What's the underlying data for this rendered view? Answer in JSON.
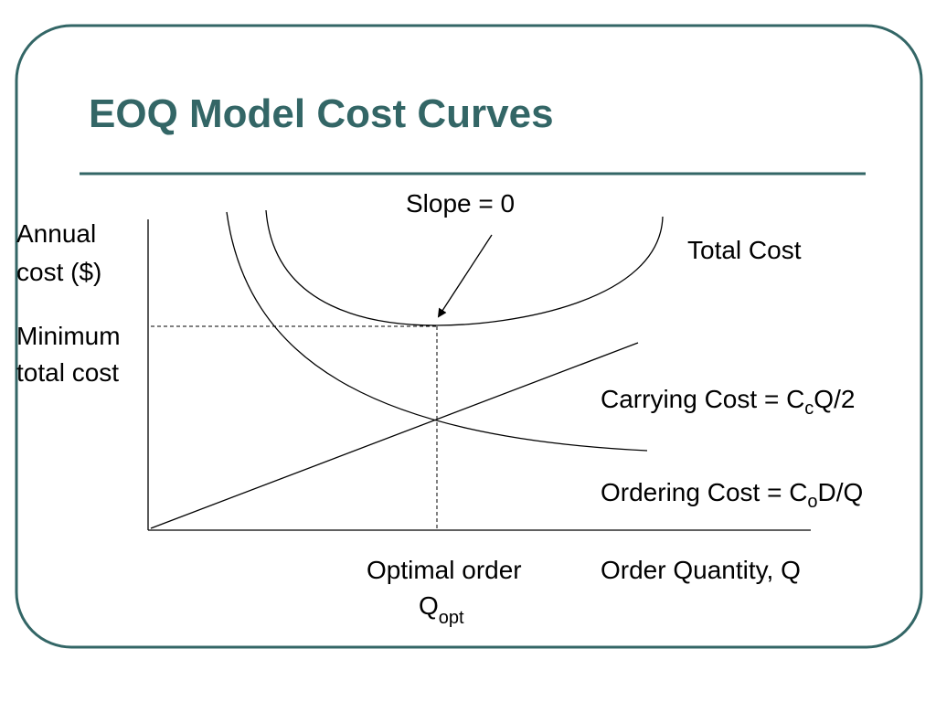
{
  "title": "EOQ Model Cost Curves",
  "y_axis_label": [
    "Annual",
    "cost ($)"
  ],
  "minimum_label": [
    "Minimum",
    "total cost"
  ],
  "slope_label": "Slope = 0",
  "total_cost_label": "Total Cost",
  "carrying_cost_label": [
    "Carrying Cost = C",
    "c",
    "Q/2"
  ],
  "ordering_cost_label": [
    "Ordering Cost = C",
    "o",
    "D/Q"
  ],
  "optimal_label": [
    "Optimal order",
    "Q",
    "opt"
  ],
  "x_axis_label": "Order Quantity, Q"
}
